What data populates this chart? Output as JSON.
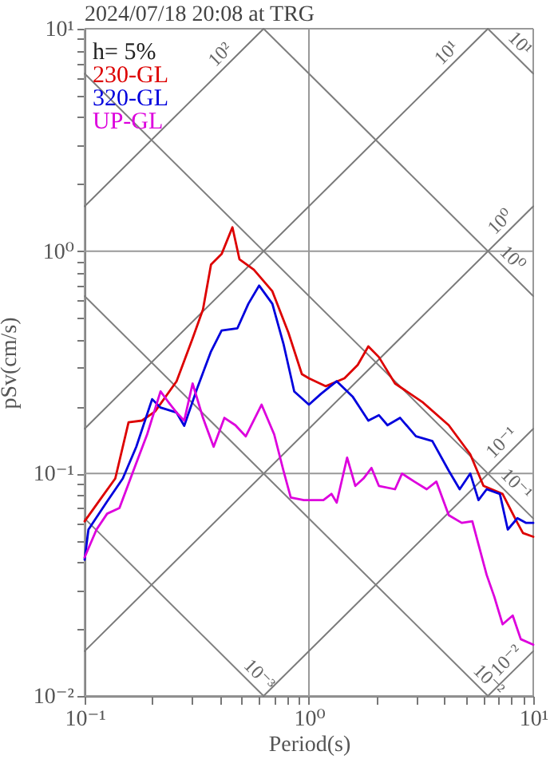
{
  "chart_data": {
    "type": "line",
    "title": "2024/07/18 20:08 at TRG",
    "xlabel": "Period(s)",
    "ylabel": "pSv(cm/s)",
    "log": "xy",
    "grid": true,
    "legend": "top left",
    "xlim": [
      0.1,
      10
    ],
    "ylim": [
      0.01,
      10
    ],
    "xticks": [
      {
        "value": 0.1,
        "label": "10⁻¹"
      },
      {
        "value": 0.2,
        "label": null
      },
      {
        "value": 0.3,
        "label": null
      },
      {
        "value": 0.4,
        "label": null
      },
      {
        "value": 0.5,
        "label": null
      },
      {
        "value": 0.6,
        "label": null
      },
      {
        "value": 0.7,
        "label": null
      },
      {
        "value": 0.8,
        "label": null
      },
      {
        "value": 0.9,
        "label": null
      },
      {
        "value": 1,
        "label": "10⁰"
      },
      {
        "value": 2,
        "label": null
      },
      {
        "value": 3,
        "label": null
      },
      {
        "value": 4,
        "label": null
      },
      {
        "value": 5,
        "label": null
      },
      {
        "value": 6,
        "label": null
      },
      {
        "value": 7,
        "label": null
      },
      {
        "value": 8,
        "label": null
      },
      {
        "value": 9,
        "label": null
      },
      {
        "value": 10,
        "label": "10¹"
      }
    ],
    "yticks": [
      {
        "value": 0.01,
        "label": "10⁻²"
      },
      {
        "value": 0.02,
        "label": null
      },
      {
        "value": 0.03,
        "label": null
      },
      {
        "value": 0.04,
        "label": null
      },
      {
        "value": 0.05,
        "label": null
      },
      {
        "value": 0.06,
        "label": null
      },
      {
        "value": 0.07,
        "label": null
      },
      {
        "value": 0.08,
        "label": null
      },
      {
        "value": 0.09,
        "label": null
      },
      {
        "value": 0.1,
        "label": "10⁻¹"
      },
      {
        "value": 0.2,
        "label": null
      },
      {
        "value": 0.3,
        "label": null
      },
      {
        "value": 0.4,
        "label": null
      },
      {
        "value": 0.5,
        "label": null
      },
      {
        "value": 0.6,
        "label": null
      },
      {
        "value": 0.7,
        "label": null
      },
      {
        "value": 0.8,
        "label": null
      },
      {
        "value": 0.9,
        "label": null
      },
      {
        "value": 1,
        "label": "10⁰"
      },
      {
        "value": 2,
        "label": null
      },
      {
        "value": 3,
        "label": null
      },
      {
        "value": 4,
        "label": null
      },
      {
        "value": 5,
        "label": null
      },
      {
        "value": 6,
        "label": null
      },
      {
        "value": 7,
        "label": null
      },
      {
        "value": 8,
        "label": null
      },
      {
        "value": 9,
        "label": null
      },
      {
        "value": 10,
        "label": "10¹"
      }
    ],
    "annotations": [
      "h= 5%",
      {
        "text": "10²",
        "x": 0.44,
        "y": 7.0
      },
      {
        "text": "10¹",
        "x": 4.49,
        "y": 7.14
      },
      {
        "text": "10¹",
        "x": 8.0,
        "y": 7.85
      },
      {
        "text": "10⁰",
        "x": 7.8,
        "y": 1.24
      },
      {
        "text": "10⁰",
        "x": 7.4,
        "y": 0.849
      },
      {
        "text": "10⁻¹",
        "x": 7.9,
        "y": 0.126
      },
      {
        "text": "10⁻¹",
        "x": 7.7,
        "y": 0.082
      },
      {
        "text": "10⁻³",
        "x": 0.55,
        "y": 0.0114
      },
      {
        "text": "10⁻²",
        "x": 5.8,
        "y": 0.0108
      },
      {
        "text": "10⁻²",
        "x": 8.3,
        "y": 0.0132
      }
    ],
    "series": [
      {
        "color": "#787878",
        "x": [
          0.1,
          0.628
        ],
        "values": [
          1.59,
          10
        ]
      },
      {
        "color": "#797979",
        "x": [
          0.1,
          6.28
        ],
        "values": [
          0.159,
          10
        ]
      },
      {
        "color": "#7a7a7a",
        "x": [
          0.1,
          10
        ],
        "values": [
          0.0159,
          1.59
        ]
      },
      {
        "color": "#7b7b7b",
        "x": [
          0.628,
          10
        ],
        "values": [
          0.01,
          0.159
        ]
      },
      {
        "color": "#7c7c7c",
        "x": [
          6.28,
          10
        ],
        "values": [
          0.01,
          0.0159
        ]
      },
      {
        "color": "#7d7d7d",
        "x": [
          6.28,
          10
        ],
        "values": [
          10,
          6.28
        ]
      },
      {
        "color": "#7e7e7e",
        "x": [
          0.628,
          10
        ],
        "values": [
          10,
          0.628
        ]
      },
      {
        "color": "#7f7f7f",
        "x": [
          0.1,
          10
        ],
        "values": [
          6.28,
          0.0628
        ]
      },
      {
        "color": "#808080",
        "x": [
          0.1,
          6.28
        ],
        "values": [
          0.628,
          0.01
        ]
      },
      {
        "color": "#818181",
        "x": [
          0.1,
          0.628
        ],
        "values": [
          0.0628,
          0.01
        ]
      },
      {
        "name": "230-GL",
        "color": "#dd0000",
        "x": [
          0.1,
          0.119,
          0.137,
          0.157,
          0.18,
          0.206,
          0.257,
          0.303,
          0.337,
          0.366,
          0.408,
          0.456,
          0.49,
          0.568,
          0.687,
          0.81,
          0.93,
          1.0,
          1.19,
          1.44,
          1.65,
          1.84,
          2.05,
          2.42,
          3.2,
          4.2,
          5.24,
          6.0,
          7.3,
          8.5,
          9.0,
          10
        ],
        "values": [
          0.061,
          0.078,
          0.095,
          0.17,
          0.173,
          0.19,
          0.26,
          0.405,
          0.547,
          0.87,
          0.97,
          1.28,
          0.92,
          0.825,
          0.66,
          0.43,
          0.28,
          0.268,
          0.247,
          0.268,
          0.308,
          0.373,
          0.334,
          0.254,
          0.21,
          0.165,
          0.122,
          0.088,
          0.081,
          0.06,
          0.054,
          0.052
        ]
      },
      {
        "name": "320-GL",
        "color": "#0000dd",
        "x": [
          0.1,
          0.104,
          0.126,
          0.148,
          0.17,
          0.2,
          0.218,
          0.257,
          0.278,
          0.32,
          0.366,
          0.408,
          0.48,
          0.537,
          0.6,
          0.687,
          0.77,
          0.86,
          1.0,
          1.13,
          1.33,
          1.57,
          1.84,
          2.05,
          2.24,
          2.55,
          3.0,
          3.55,
          4.2,
          4.7,
          5.24,
          5.7,
          6.2,
          7.1,
          7.7,
          8.5,
          9.3,
          10
        ],
        "values": [
          0.041,
          0.056,
          0.075,
          0.095,
          0.132,
          0.216,
          0.198,
          0.188,
          0.164,
          0.247,
          0.354,
          0.44,
          0.45,
          0.58,
          0.7,
          0.58,
          0.383,
          0.234,
          0.204,
          0.228,
          0.26,
          0.221,
          0.173,
          0.183,
          0.165,
          0.178,
          0.147,
          0.14,
          0.103,
          0.085,
          0.1,
          0.076,
          0.085,
          0.081,
          0.056,
          0.063,
          0.06,
          0.06
        ]
      },
      {
        "name": "UP-GL",
        "color": "#dd00dd",
        "x": [
          0.1,
          0.113,
          0.126,
          0.143,
          0.165,
          0.19,
          0.218,
          0.236,
          0.257,
          0.278,
          0.303,
          0.337,
          0.376,
          0.42,
          0.47,
          0.523,
          0.615,
          0.7,
          0.77,
          0.83,
          0.95,
          1.16,
          1.26,
          1.33,
          1.48,
          1.61,
          1.75,
          1.9,
          2.05,
          2.42,
          2.6,
          2.95,
          3.35,
          3.7,
          4.2,
          4.8,
          5.35,
          5.7,
          6.2,
          6.7,
          7.3,
          8.1,
          8.8,
          10
        ],
        "values": [
          0.042,
          0.056,
          0.066,
          0.07,
          0.103,
          0.15,
          0.234,
          0.21,
          0.188,
          0.173,
          0.254,
          0.178,
          0.132,
          0.178,
          0.165,
          0.147,
          0.204,
          0.15,
          0.103,
          0.078,
          0.076,
          0.076,
          0.081,
          0.074,
          0.118,
          0.088,
          0.095,
          0.106,
          0.088,
          0.085,
          0.1,
          0.092,
          0.085,
          0.092,
          0.065,
          0.06,
          0.061,
          0.048,
          0.035,
          0.028,
          0.021,
          0.023,
          0.018,
          0.017
        ]
      }
    ]
  }
}
